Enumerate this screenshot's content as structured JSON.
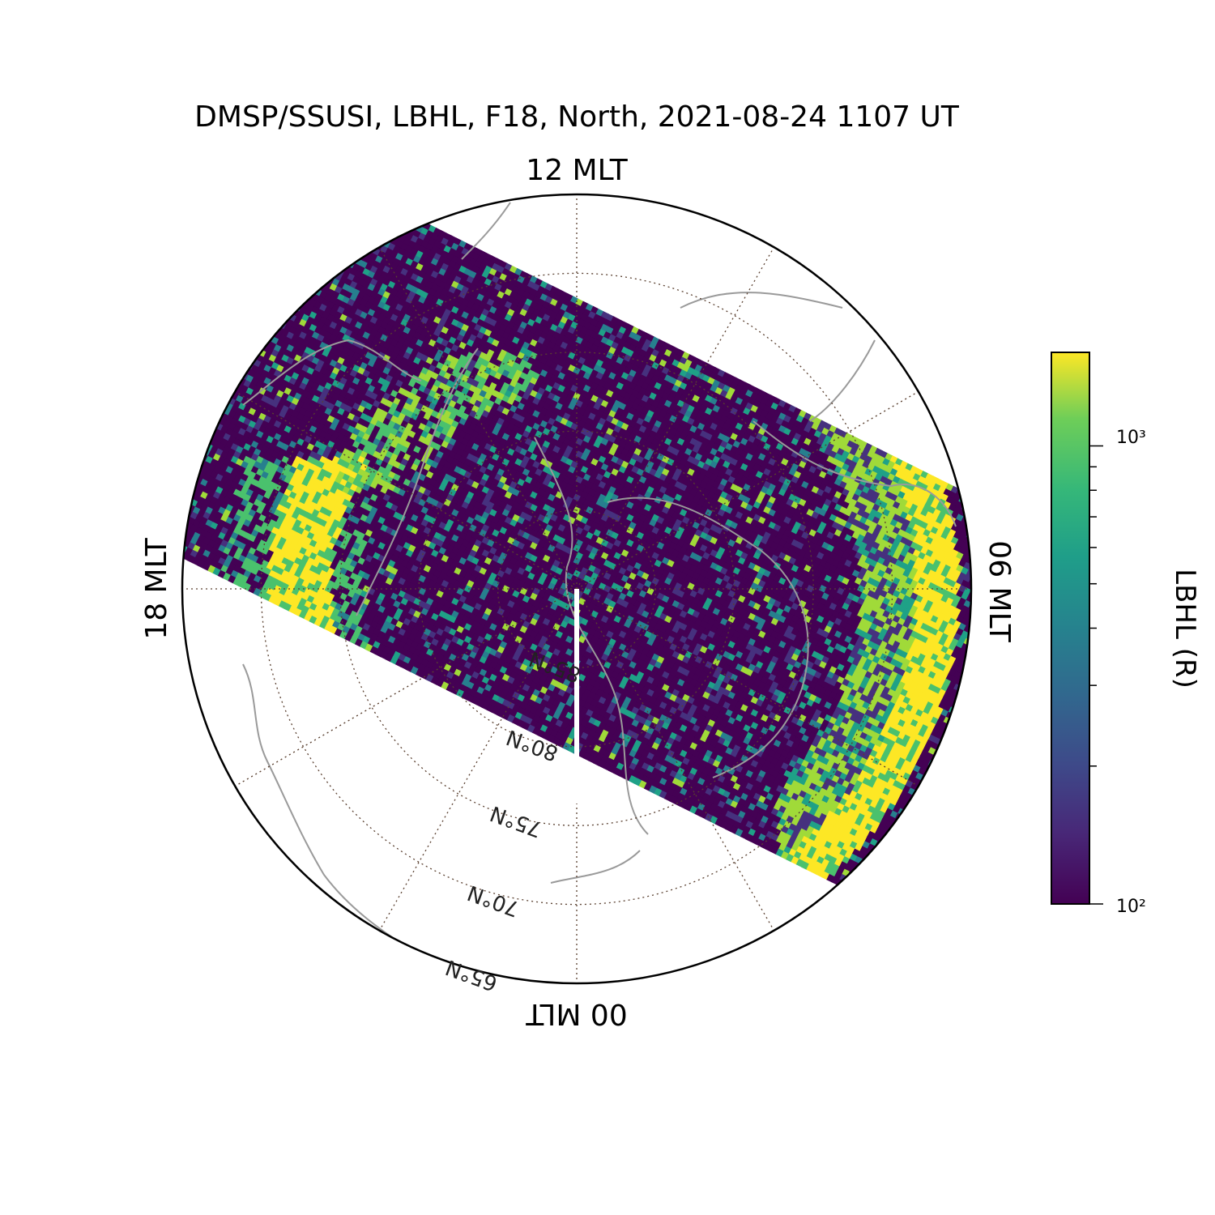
{
  "title": "DMSP/SSUSI, LBHL, F18, North, 2021-08-24 1107 UT",
  "mlt_labels": {
    "top": "12 MLT",
    "right": "06 MLT",
    "bottom": "00 MLT",
    "left": "18 MLT"
  },
  "latitude_labels": [
    "85°N",
    "80°N",
    "75°N",
    "70°N",
    "65°N"
  ],
  "colorbar": {
    "label": "LBHL (R)",
    "scale": "log",
    "range": [
      100,
      1600
    ],
    "tick_labels": [
      "10³",
      "10²"
    ],
    "colormap": "viridis"
  },
  "colors": {
    "low": "#440154",
    "mid": "#21918c",
    "high": "#fde725",
    "coastline": "#9a9a9a",
    "grid": "#5a4030"
  },
  "chart_data": {
    "type": "heatmap",
    "projection": "polar magnetic latitude / MLT",
    "lat_range": [
      65,
      90
    ],
    "lat_gridlines": [
      85,
      80,
      75,
      70,
      65
    ],
    "value_range": [
      100,
      1600
    ],
    "features": [
      {
        "name": "",
        "mlt_range": [
          18,
          20
        ],
        "lat_range": [
          70,
          76
        ],
        "value": 1500
      },
      {
        "name": "",
        "mlt_range": [
          2,
          6
        ],
        "lat_range": [
          65,
          72
        ],
        "value": 1500
      }
    ]
  }
}
